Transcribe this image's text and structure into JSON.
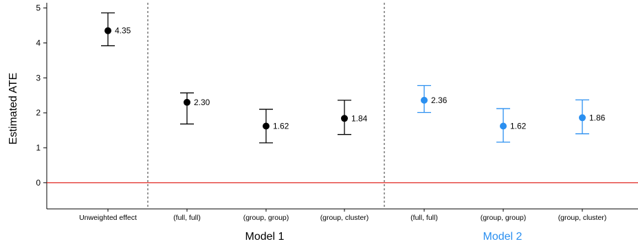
{
  "chart_data": {
    "type": "scatter",
    "ylabel": "Estimated ATE",
    "ylim": [
      -0.75,
      5.15
    ],
    "yticks": [
      "0",
      "1",
      "2",
      "3",
      "4",
      "5"
    ],
    "reference_line": {
      "y": 0,
      "color": "#e0201b"
    },
    "categories": [
      "Unweighted effect",
      "(full, full)",
      "(group, group)",
      "(group, cluster)",
      "(full, full)",
      "(group, group)",
      "(group, cluster)"
    ],
    "groups": [
      {
        "label": "Model 1",
        "color": "#000000"
      },
      {
        "label": "Model 2",
        "color": "#2a8ff0"
      }
    ],
    "points": [
      {
        "estimate": 4.35,
        "lower": 3.92,
        "upper": 4.86,
        "label": "4.35",
        "color": "#000000"
      },
      {
        "estimate": 2.3,
        "lower": 1.68,
        "upper": 2.57,
        "label": "2.30",
        "color": "#000000"
      },
      {
        "estimate": 1.62,
        "lower": 1.14,
        "upper": 2.1,
        "label": "1.62",
        "color": "#000000"
      },
      {
        "estimate": 1.84,
        "lower": 1.38,
        "upper": 2.36,
        "label": "1.84",
        "color": "#000000"
      },
      {
        "estimate": 2.36,
        "lower": 2.01,
        "upper": 2.78,
        "label": "2.36",
        "color": "#2a8ff0"
      },
      {
        "estimate": 1.62,
        "lower": 1.16,
        "upper": 2.12,
        "label": "1.62",
        "color": "#2a8ff0"
      },
      {
        "estimate": 1.86,
        "lower": 1.4,
        "upper": 2.37,
        "label": "1.86",
        "color": "#2a8ff0"
      }
    ],
    "grid": false,
    "separators": "dashed vertical lines between Unweighted effect / Model 1 / Model 2"
  }
}
